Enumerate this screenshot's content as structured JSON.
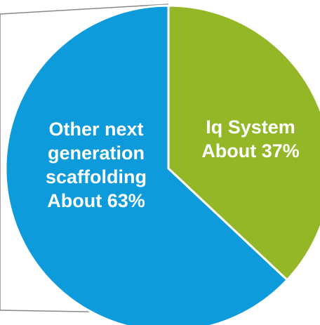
{
  "chart_data": {
    "type": "pie",
    "title": "",
    "slices": [
      {
        "name": "Iq System",
        "value": 37,
        "label_lines": [
          "Iq System",
          "About 37%"
        ],
        "color": "#94B728"
      },
      {
        "name": "Other next generation scaffolding",
        "value": 63,
        "label_lines": [
          "Other next",
          "generation",
          "scaffolding",
          "About 63%"
        ],
        "color": "#0D9BDC"
      }
    ],
    "start_angle": "top (12 o'clock), clockwise",
    "separator_color": "#ffffff",
    "callout_line_color": "#888888"
  }
}
